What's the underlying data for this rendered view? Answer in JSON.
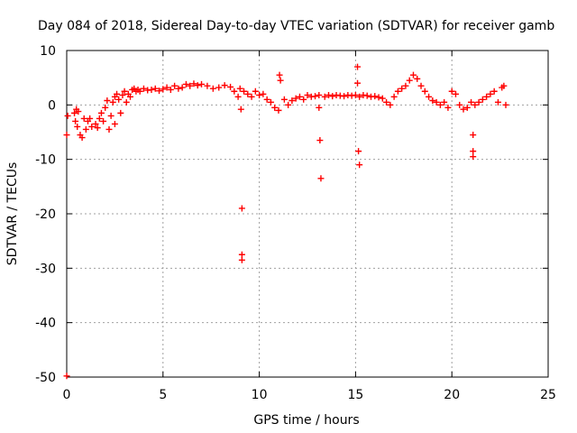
{
  "chart_data": {
    "type": "scatter",
    "title": "Day 084 of 2018, Sidereal Day-to-day VTEC variation (SDTVAR) for receiver gamb",
    "xlabel": "GPS time / hours",
    "ylabel": "SDTVAR / TECUs",
    "xlim": [
      0,
      25
    ],
    "ylim": [
      -50,
      10
    ],
    "x_ticks": [
      0,
      5,
      10,
      15,
      20,
      25
    ],
    "y_ticks": [
      -50,
      -40,
      -30,
      -20,
      -10,
      0,
      10
    ],
    "grid": true,
    "marker": "+",
    "color": "#ff0000",
    "series": [
      {
        "name": "SDTVAR",
        "x": [
          0.0,
          0.0,
          0.05,
          0.4,
          0.45,
          0.5,
          0.55,
          0.6,
          0.7,
          0.8,
          0.9,
          1.0,
          1.1,
          1.2,
          1.3,
          1.5,
          1.6,
          1.7,
          1.8,
          1.9,
          2.0,
          2.1,
          2.2,
          2.3,
          2.4,
          2.5,
          2.5,
          2.6,
          2.7,
          2.8,
          2.9,
          3.0,
          3.1,
          3.2,
          3.3,
          3.4,
          3.5,
          3.6,
          3.7,
          3.8,
          4.0,
          4.2,
          4.4,
          4.6,
          4.8,
          5.0,
          5.2,
          5.4,
          5.6,
          5.8,
          6.0,
          6.2,
          6.4,
          6.6,
          6.8,
          7.0,
          7.3,
          7.6,
          7.9,
          8.2,
          8.5,
          8.7,
          8.9,
          9.0,
          9.05,
          9.1,
          9.1,
          9.1,
          9.2,
          9.4,
          9.6,
          9.8,
          10.0,
          10.2,
          10.4,
          10.6,
          10.8,
          11.0,
          11.05,
          11.1,
          11.3,
          11.5,
          11.7,
          11.9,
          12.1,
          12.3,
          12.5,
          12.7,
          12.9,
          13.1,
          13.1,
          13.15,
          13.2,
          13.4,
          13.6,
          13.8,
          14.0,
          14.2,
          14.4,
          14.6,
          14.8,
          15.0,
          15.1,
          15.1,
          15.15,
          15.2,
          15.2,
          15.4,
          15.6,
          15.8,
          16.0,
          16.2,
          16.4,
          16.6,
          16.8,
          17.0,
          17.2,
          17.4,
          17.6,
          17.8,
          18.0,
          18.2,
          18.4,
          18.6,
          18.8,
          19.0,
          19.2,
          19.4,
          19.6,
          19.8,
          20.0,
          20.2,
          20.4,
          20.6,
          20.8,
          21.0,
          21.1,
          21.1,
          21.1,
          21.2,
          21.4,
          21.6,
          21.8,
          22.0,
          22.2,
          22.4,
          22.6,
          22.7,
          22.8
        ],
        "y": [
          -49.8,
          -5.5,
          -2.0,
          -1.5,
          -3.0,
          -0.8,
          -4.0,
          -1.2,
          -5.5,
          -6.0,
          -2.5,
          -4.5,
          -3.0,
          -2.5,
          -4.0,
          -3.5,
          -4.2,
          -2.5,
          -1.5,
          -3.0,
          -0.5,
          0.8,
          -4.5,
          -2.0,
          0.5,
          1.5,
          -3.5,
          2.0,
          1.0,
          -1.5,
          1.8,
          2.5,
          0.5,
          2.0,
          1.5,
          2.8,
          3.0,
          2.5,
          2.8,
          2.5,
          3.0,
          2.7,
          2.8,
          3.0,
          2.6,
          2.9,
          3.2,
          2.8,
          3.5,
          3.0,
          3.2,
          3.8,
          3.5,
          3.9,
          3.6,
          3.8,
          3.5,
          3.0,
          3.2,
          3.6,
          3.3,
          2.5,
          1.5,
          3.0,
          -0.8,
          -19.0,
          -27.5,
          -28.5,
          2.5,
          2.0,
          1.5,
          2.5,
          1.8,
          2.0,
          1.0,
          0.5,
          -0.5,
          -1.0,
          5.5,
          4.5,
          1.0,
          0.0,
          0.8,
          1.2,
          1.5,
          1.0,
          1.8,
          1.5,
          1.6,
          1.8,
          -0.5,
          -6.5,
          -13.5,
          1.5,
          1.8,
          1.6,
          1.8,
          1.7,
          1.6,
          1.8,
          1.7,
          1.8,
          7.0,
          4.0,
          -8.5,
          -11.0,
          1.5,
          1.8,
          1.7,
          1.5,
          1.6,
          1.4,
          1.2,
          0.5,
          0.0,
          1.5,
          2.5,
          3.0,
          3.5,
          4.5,
          5.5,
          4.8,
          3.5,
          2.5,
          1.5,
          0.8,
          0.5,
          0.0,
          0.5,
          -0.5,
          2.5,
          2.0,
          0.0,
          -0.8,
          -0.5,
          0.5,
          -5.5,
          -8.5,
          -9.5,
          0.0,
          0.5,
          1.0,
          1.5,
          2.0,
          2.5,
          0.5,
          3.2,
          3.5,
          0.0
        ]
      }
    ]
  }
}
